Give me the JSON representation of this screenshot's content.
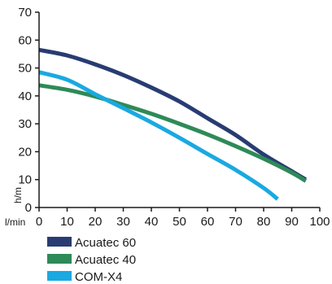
{
  "chart_data": {
    "type": "line",
    "title": "",
    "xlabel": "l/min",
    "ylabel": "h/m",
    "xlim": [
      0,
      100
    ],
    "ylim": [
      0,
      70
    ],
    "x_ticks": [
      0,
      10,
      20,
      30,
      40,
      50,
      60,
      70,
      80,
      90,
      100
    ],
    "y_ticks": [
      0,
      10,
      20,
      30,
      40,
      50,
      60,
      70
    ],
    "grid": false,
    "legend_position": "bottom-left",
    "series": [
      {
        "name": "Acuatec 60",
        "color": "#283c73",
        "x": [
          0,
          10,
          20,
          30,
          40,
          50,
          60,
          70,
          80,
          90,
          95
        ],
        "y": [
          56.5,
          54.5,
          51.3,
          47.5,
          43.0,
          38.0,
          32.0,
          26.0,
          19.0,
          13.0,
          10.0
        ]
      },
      {
        "name": "Acuatec 40",
        "color": "#2e8a58",
        "x": [
          0,
          10,
          20,
          30,
          40,
          50,
          60,
          70,
          80,
          90,
          95
        ],
        "y": [
          43.8,
          42.2,
          39.8,
          36.8,
          33.6,
          30.0,
          26.2,
          22.0,
          17.5,
          12.5,
          9.5
        ]
      },
      {
        "name": "COM-X4",
        "color": "#1aa9e1",
        "x": [
          0,
          10,
          20,
          30,
          40,
          50,
          60,
          70,
          80,
          85
        ],
        "y": [
          48.5,
          45.8,
          40.6,
          35.6,
          30.5,
          25.0,
          19.2,
          13.5,
          7.0,
          3.0
        ]
      }
    ]
  }
}
